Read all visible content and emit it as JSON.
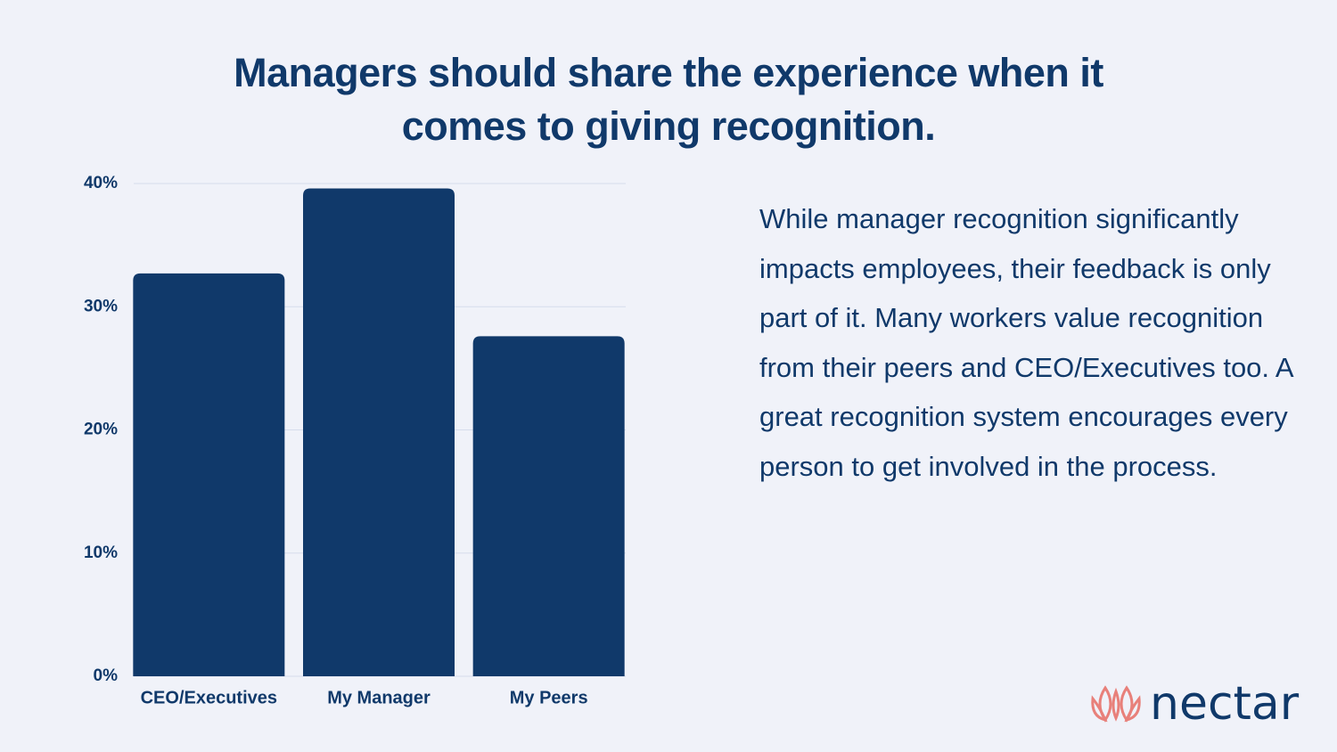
{
  "chart_data": {
    "type": "bar",
    "title": "Managers should share the experience when it comes to giving recognition.",
    "categories": [
      "CEO/Executives",
      "My Manager",
      "My Peers"
    ],
    "values": [
      32.7,
      39.6,
      27.6
    ],
    "color": "#10396a",
    "ylim": [
      0,
      40
    ],
    "yticks": [
      {
        "value": 0,
        "label": "0%"
      },
      {
        "value": 10,
        "label": "10%"
      },
      {
        "value": 20,
        "label": "20%"
      },
      {
        "value": 30,
        "label": "30%"
      },
      {
        "value": 40,
        "label": "40%"
      }
    ],
    "grid": true
  },
  "description": "While manager recognition significantly impacts employees, their feedback is only part of it. Many workers value recognition from their peers and CEO/Executives too. A great recognition system encourages every person to get involved in the process.",
  "logo": "nectar"
}
